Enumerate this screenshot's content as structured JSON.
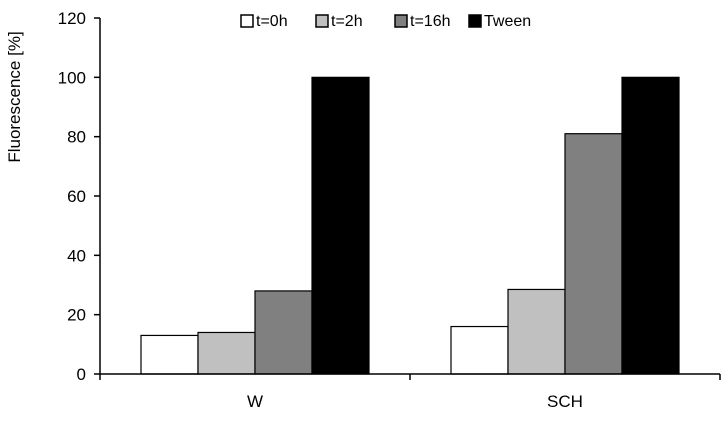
{
  "chart_data": {
    "type": "bar",
    "title": "",
    "xlabel": "",
    "ylabel": "Fluorescence [%]",
    "ylim": [
      0,
      120
    ],
    "yticks": [
      0,
      20,
      40,
      60,
      80,
      100,
      120
    ],
    "grid": false,
    "legend_position": "top",
    "categories": [
      "W",
      "SCH"
    ],
    "series": [
      {
        "name": "t=0h",
        "color": "#ffffff",
        "values": [
          13,
          16
        ]
      },
      {
        "name": "t=2h",
        "color": "#c0c0c0",
        "values": [
          14,
          28.5
        ]
      },
      {
        "name": "t=16h",
        "color": "#808080",
        "values": [
          28,
          81
        ]
      },
      {
        "name": "Tween",
        "color": "#000000",
        "values": [
          100,
          100
        ]
      }
    ]
  }
}
